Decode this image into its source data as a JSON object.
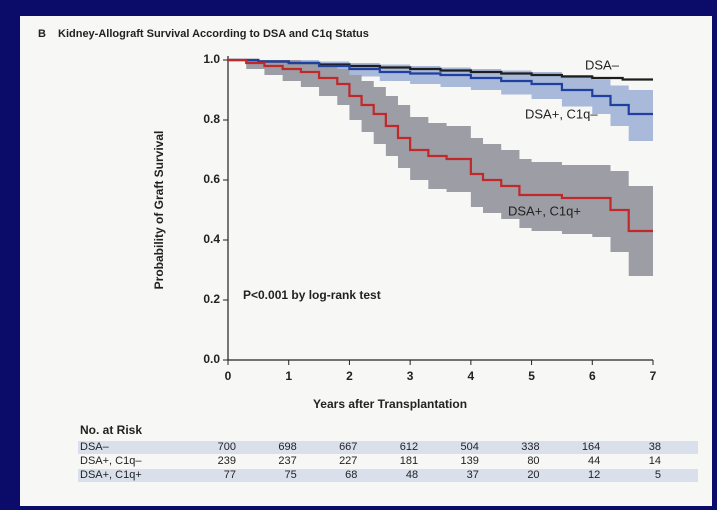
{
  "panel": "B",
  "chart_data": {
    "type": "step",
    "title": "Kidney-Allograft Survival According to DSA and C1q Status",
    "x_label": "Years after Transplantation",
    "y_label": "Probability of Graft Survival",
    "annotation": "P<0.001 by log-rank test",
    "xlim": [
      0,
      7
    ],
    "ylim": [
      0,
      1
    ],
    "xticks": [
      0,
      1,
      2,
      3,
      4,
      5,
      6,
      7
    ],
    "yticks": [
      {
        "value": 0,
        "label": "0.0"
      },
      {
        "value": 0.2,
        "label": "0.2"
      },
      {
        "value": 0.4,
        "label": "0.4"
      },
      {
        "value": 0.6,
        "label": "0.6"
      },
      {
        "value": 0.8,
        "label": "0.8"
      },
      {
        "value": 1,
        "label": "1.0"
      }
    ],
    "series": [
      {
        "name": "DSA–",
        "color": "#1e1e1e",
        "x": [
          0,
          0.5,
          1,
          1.5,
          2,
          2.5,
          3,
          3.5,
          4,
          4.5,
          5,
          5.5,
          6,
          6.5,
          7
        ],
        "values": [
          1,
          0.995,
          0.99,
          0.985,
          0.98,
          0.975,
          0.97,
          0.965,
          0.96,
          0.955,
          0.95,
          0.945,
          0.94,
          0.935,
          0.935
        ]
      },
      {
        "name": "DSA+, C1q–",
        "color": "#2040a0",
        "band_color": "#a9b9d9",
        "x": [
          0,
          0.5,
          1,
          1.5,
          2,
          2.5,
          3,
          3.5,
          4,
          4.5,
          5,
          5.5,
          6,
          6.3,
          6.6,
          7
        ],
        "values": [
          1,
          0.995,
          0.99,
          0.98,
          0.97,
          0.96,
          0.955,
          0.95,
          0.94,
          0.93,
          0.92,
          0.9,
          0.88,
          0.85,
          0.82,
          0.82
        ],
        "lower": [
          1,
          0.985,
          0.975,
          0.96,
          0.945,
          0.93,
          0.92,
          0.91,
          0.9,
          0.885,
          0.87,
          0.845,
          0.82,
          0.78,
          0.73,
          0.73
        ],
        "upper": [
          1,
          1,
          1,
          0.995,
          0.99,
          0.985,
          0.98,
          0.975,
          0.97,
          0.965,
          0.96,
          0.95,
          0.935,
          0.915,
          0.9,
          0.9
        ]
      },
      {
        "name": "DSA+, C1q+",
        "color": "#c0282a",
        "band_color": "#9d9da6",
        "x": [
          0,
          0.3,
          0.6,
          0.9,
          1.2,
          1.5,
          1.8,
          2,
          2.2,
          2.4,
          2.6,
          2.8,
          3,
          3.3,
          3.6,
          4,
          4.2,
          4.5,
          4.8,
          5,
          5.5,
          6,
          6.3,
          6.6,
          7
        ],
        "values": [
          1,
          0.99,
          0.98,
          0.97,
          0.96,
          0.94,
          0.92,
          0.88,
          0.85,
          0.82,
          0.78,
          0.74,
          0.7,
          0.68,
          0.67,
          0.62,
          0.6,
          0.58,
          0.55,
          0.55,
          0.54,
          0.54,
          0.5,
          0.43,
          0.43
        ],
        "lower": [
          1,
          0.97,
          0.95,
          0.93,
          0.91,
          0.88,
          0.85,
          0.8,
          0.76,
          0.72,
          0.68,
          0.64,
          0.6,
          0.57,
          0.56,
          0.51,
          0.49,
          0.47,
          0.44,
          0.43,
          0.42,
          0.41,
          0.36,
          0.28,
          0.28
        ],
        "upper": [
          1,
          1,
          1,
          1,
          0.99,
          0.98,
          0.97,
          0.95,
          0.93,
          0.91,
          0.88,
          0.85,
          0.81,
          0.79,
          0.78,
          0.74,
          0.72,
          0.7,
          0.67,
          0.66,
          0.65,
          0.65,
          0.63,
          0.58,
          0.58
        ]
      }
    ],
    "risk_table": {
      "title": "No. at Risk",
      "rows": [
        [
          700,
          698,
          667,
          612,
          504,
          338,
          164,
          38
        ],
        [
          239,
          237,
          227,
          181,
          139,
          80,
          44,
          14
        ],
        [
          77,
          75,
          68,
          48,
          37,
          20,
          12,
          5
        ]
      ]
    }
  }
}
